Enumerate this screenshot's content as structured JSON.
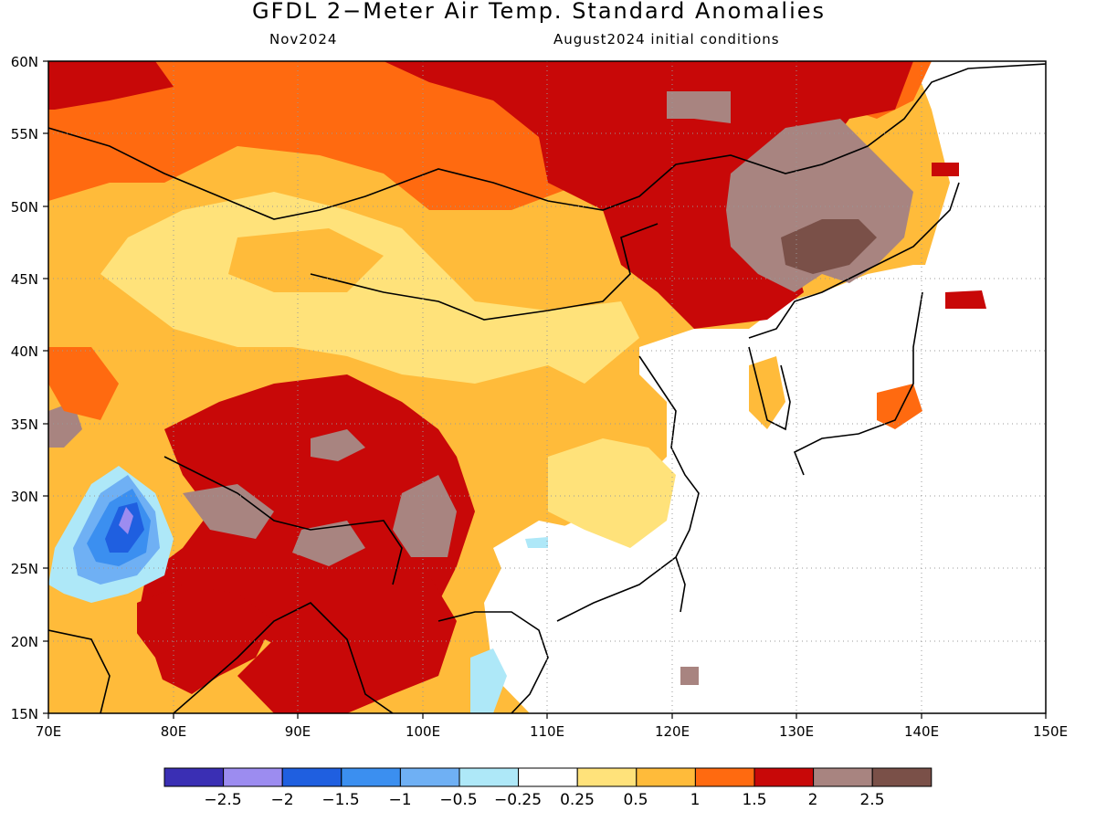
{
  "title": "GFDL 2−Meter Air Temp. Standard Anomalies",
  "valid_month": "Nov2024",
  "init": "August2024 initial conditions",
  "x_ticks": [
    "70E",
    "80E",
    "90E",
    "100E",
    "110E",
    "120E",
    "130E",
    "140E",
    "150E"
  ],
  "y_ticks": [
    "60N",
    "55N",
    "50N",
    "45N",
    "40N",
    "35N",
    "30N",
    "25N",
    "20N",
    "15N"
  ],
  "legend": {
    "colors": [
      "#3a2fb4",
      "#9c8cf0",
      "#1f5fe0",
      "#3b8ff0",
      "#6fb0f4",
      "#aee8f8",
      "#ffffff",
      "#ffe27a",
      "#ffbb3a",
      "#ff6a10",
      "#c80808",
      "#a88480",
      "#7a5048"
    ],
    "labels": [
      "−2.5",
      "−2",
      "−1.5",
      "−1",
      "−0.5",
      "−0.25",
      "0.25",
      "0.5",
      "1",
      "1.5",
      "2",
      "2.5"
    ]
  }
}
